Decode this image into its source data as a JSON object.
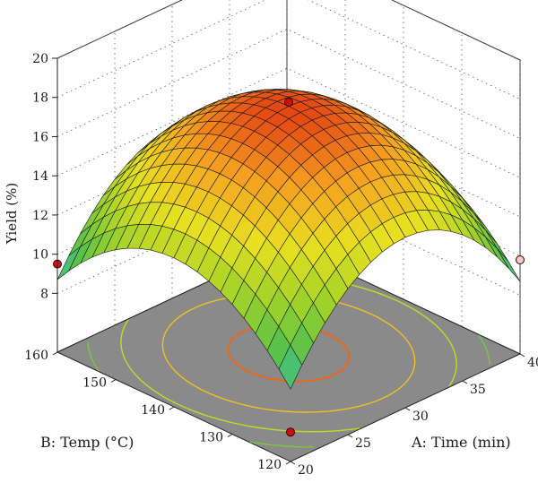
{
  "chart_data": {
    "type": "surface3d",
    "title": "",
    "zlabel": "Yield (%)",
    "xlabel": "A: Time (min)",
    "ylabel": "B: Temp (°C)",
    "xlim": [
      20,
      40
    ],
    "ylim": [
      120,
      160
    ],
    "zlim": [
      8,
      20
    ],
    "x_ticks": [
      20,
      25,
      30,
      35,
      40
    ],
    "y_ticks": [
      120,
      130,
      140,
      150,
      160
    ],
    "z_ticks": [
      8,
      10,
      12,
      14,
      16,
      18,
      20
    ],
    "model": {
      "description": "quadratic response surface",
      "center": {
        "x": 30,
        "y": 140,
        "z": 17.6
      },
      "coef_x2": 5.0,
      "coef_y2": 3.9,
      "grid_n": 21
    },
    "design_points": [
      {
        "x": 20,
        "y": 160,
        "z": 9.5,
        "color": "#cc1111"
      },
      {
        "x": 30,
        "y": 140,
        "z": 17.8,
        "color": "#cc1111"
      },
      {
        "x": 40,
        "y": 120,
        "z": 9.8,
        "color": "#f2c8c8"
      },
      {
        "x": 20,
        "y": 120,
        "z": 6.5,
        "color": "#cc1111"
      }
    ],
    "contour_levels": [
      9,
      11,
      13,
      15,
      17
    ],
    "floor_color": "#8a8a8a",
    "colormap": [
      "#2a7de0",
      "#3ec2e8",
      "#4fbf4f",
      "#9fd22a",
      "#e8e020",
      "#f5a020",
      "#e03010"
    ],
    "grid": true
  }
}
